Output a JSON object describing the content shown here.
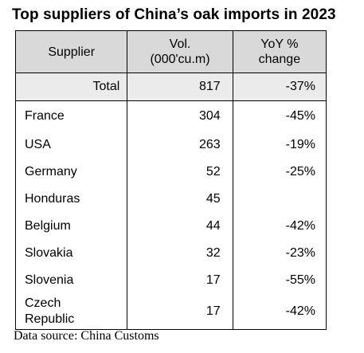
{
  "title": "Top suppliers of China’s oak imports in 2023",
  "table": {
    "headers": {
      "supplier": "Supplier",
      "volume": "Vol.\n(000'cu.m)",
      "yoy": "YoY %\nchange"
    },
    "total": {
      "label": "Total",
      "volume": "817",
      "yoy": "-37%"
    },
    "rows": [
      {
        "supplier": "France",
        "volume": "304",
        "yoy": "-45%"
      },
      {
        "supplier": "USA",
        "volume": "263",
        "yoy": "-19%"
      },
      {
        "supplier": "Germany",
        "volume": "52",
        "yoy": "-25%"
      },
      {
        "supplier": "Honduras",
        "volume": "45",
        "yoy": ""
      },
      {
        "supplier": "Belgium",
        "volume": "44",
        "yoy": "-42%"
      },
      {
        "supplier": "Slovakia",
        "volume": "32",
        "yoy": "-23%"
      },
      {
        "supplier": "Slovenia",
        "volume": "17",
        "yoy": "-55%"
      },
      {
        "supplier": "Czech\nRepublic",
        "volume": "17",
        "yoy": "-42%"
      }
    ]
  },
  "source": "Data source: China Customs"
}
